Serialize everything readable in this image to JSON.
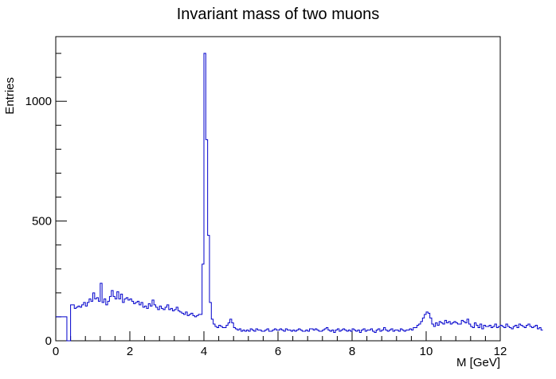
{
  "chart_data": {
    "type": "histogram",
    "title": "Invariant mass of two muons",
    "xlabel": "M [GeV]",
    "ylabel": "Entries",
    "xlim": [
      0,
      12
    ],
    "ylim": [
      0,
      1270
    ],
    "xticks": [
      0,
      2,
      4,
      6,
      8,
      10,
      12
    ],
    "yticks": [
      0,
      500,
      1000
    ],
    "bin_width": 0.05,
    "line_color": "#0000cc",
    "series": [
      {
        "values": [
          100,
          100,
          100,
          100,
          100,
          100,
          0,
          0,
          150,
          150,
          135,
          140,
          145,
          140,
          150,
          160,
          145,
          160,
          175,
          165,
          200,
          175,
          180,
          165,
          240,
          160,
          175,
          150,
          165,
          185,
          210,
          185,
          175,
          205,
          175,
          195,
          160,
          175,
          180,
          170,
          175,
          165,
          155,
          160,
          165,
          150,
          160,
          140,
          145,
          135,
          155,
          145,
          170,
          150,
          140,
          130,
          145,
          135,
          130,
          140,
          150,
          130,
          135,
          125,
          130,
          140,
          125,
          120,
          115,
          110,
          120,
          105,
          110,
          115,
          105,
          100,
          105,
          110,
          110,
          320,
          1200,
          840,
          440,
          160,
          90,
          70,
          60,
          55,
          65,
          60,
          55,
          55,
          65,
          75,
          90,
          75,
          55,
          50,
          45,
          50,
          40,
          45,
          40,
          45,
          40,
          50,
          45,
          40,
          50,
          45,
          45,
          40,
          40,
          45,
          50,
          40,
          40,
          45,
          50,
          45,
          45,
          50,
          45,
          40,
          50,
          45,
          45,
          40,
          45,
          40,
          45,
          50,
          45,
          40,
          40,
          45,
          40,
          50,
          50,
          45,
          50,
          45,
          40,
          40,
          45,
          50,
          55,
          45,
          40,
          45,
          35,
          45,
          50,
          40,
          45,
          50,
          45,
          40,
          45,
          40,
          50,
          45,
          40,
          45,
          35,
          45,
          50,
          40,
          45,
          45,
          50,
          40,
          35,
          45,
          50,
          40,
          45,
          55,
          45,
          40,
          45,
          50,
          40,
          45,
          45,
          40,
          50,
          45,
          40,
          45,
          45,
          50,
          45,
          55,
          55,
          65,
          70,
          80,
          95,
          110,
          120,
          115,
          95,
          70,
          60,
          75,
          65,
          80,
          75,
          70,
          85,
          75,
          80,
          70,
          75,
          80,
          75,
          70,
          70,
          85,
          80,
          75,
          90,
          70,
          60,
          55,
          75,
          65,
          55,
          70,
          50,
          65,
          60,
          60,
          65,
          55,
          60,
          70,
          55,
          60,
          65,
          60,
          55,
          70,
          60,
          55,
          50,
          60,
          65,
          55,
          70,
          65,
          60,
          55,
          65,
          70,
          60,
          55,
          60,
          65,
          50,
          55,
          45
        ]
      }
    ]
  }
}
